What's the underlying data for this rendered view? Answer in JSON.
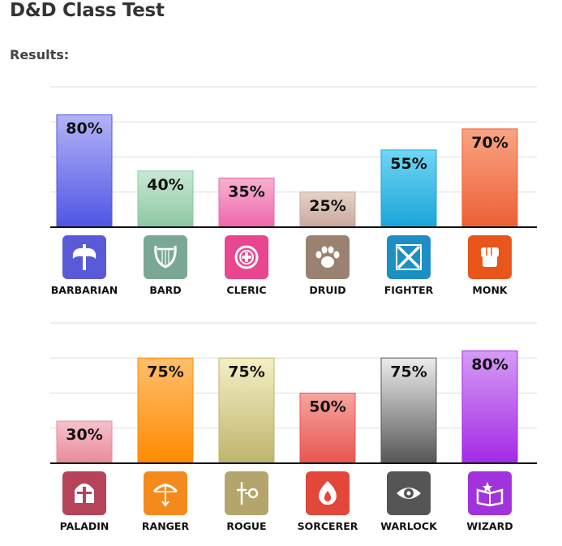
{
  "page": {
    "title": "D&D Class Test",
    "results_label": "Results:"
  },
  "chart_data": [
    {
      "type": "bar",
      "categories": [
        "BARBARIAN",
        "BARD",
        "CLERIC",
        "DRUID",
        "FIGHTER",
        "MONK"
      ],
      "values": [
        80,
        40,
        35,
        25,
        55,
        70
      ],
      "value_labels": [
        "80%",
        "40%",
        "35%",
        "25%",
        "55%",
        "70%"
      ],
      "ylim": [
        0,
        100
      ],
      "grid": true,
      "colors": [
        [
          "#b3b3f6",
          "#4f55e6"
        ],
        [
          "#c9e8d4",
          "#8cc7a2"
        ],
        [
          "#f7b2d2",
          "#ee67aa"
        ],
        [
          "#e6d2c7",
          "#c9a89b"
        ],
        [
          "#6fd6f5",
          "#1ba4d8"
        ],
        [
          "#f9a484",
          "#ed5f35"
        ]
      ],
      "icon_colors": [
        "#5a5ad8",
        "#7aa895",
        "#e8468f",
        "#9b8170",
        "#1d8fc4",
        "#e8561c"
      ],
      "icons": [
        "axe-icon",
        "lyre-icon",
        "holy-symbol-icon",
        "paw-icon",
        "crossed-swords-icon",
        "fist-icon"
      ]
    },
    {
      "type": "bar",
      "categories": [
        "PALADIN",
        "RANGER",
        "ROGUE",
        "SORCERER",
        "WARLOCK",
        "WIZARD"
      ],
      "values": [
        30,
        75,
        75,
        50,
        75,
        80
      ],
      "value_labels": [
        "30%",
        "75%",
        "75%",
        "50%",
        "75%",
        "80%"
      ],
      "ylim": [
        0,
        100
      ],
      "grid": true,
      "colors": [
        [
          "#f5c2cb",
          "#e98a9b"
        ],
        [
          "#ffbf6e",
          "#ff8a00"
        ],
        [
          "#f4efc6",
          "#bfb46a"
        ],
        [
          "#f6a4a0",
          "#e9554f"
        ],
        [
          "#ececec",
          "#555555"
        ],
        [
          "#d69cf4",
          "#a429e6"
        ]
      ],
      "icon_colors": [
        "#b5435a",
        "#f58a1c",
        "#b3a56b",
        "#e2473a",
        "#555555",
        "#a133dd"
      ],
      "icons": [
        "helmet-icon",
        "bow-icon",
        "key-dagger-icon",
        "flame-icon",
        "eye-icon",
        "spellbook-icon"
      ]
    }
  ]
}
